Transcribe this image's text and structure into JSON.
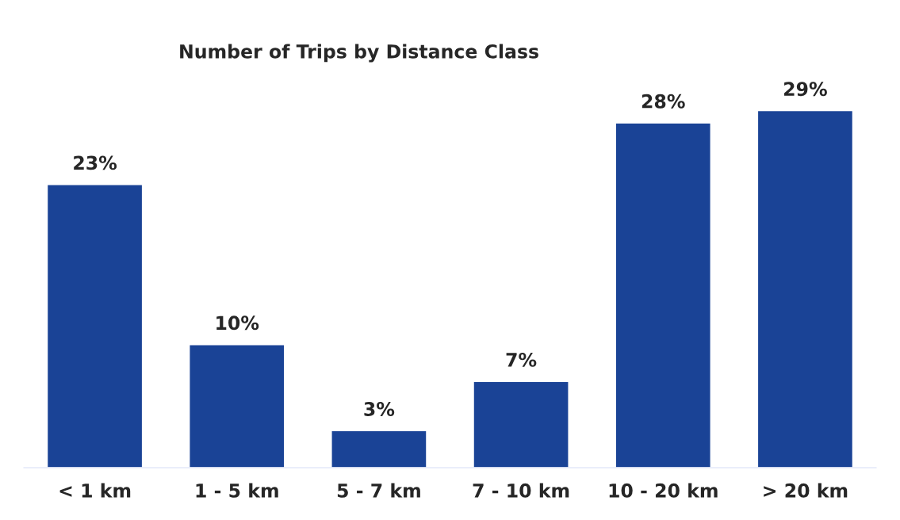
{
  "chart_data": {
    "type": "bar",
    "title": "Number of Trips by Distance Class",
    "categories": [
      "< 1 km",
      "1 - 5 km",
      "5 - 7 km",
      "7 - 10 km",
      "10 - 20 km",
      "> 20 km"
    ],
    "values": [
      23,
      10,
      3,
      7,
      28,
      29
    ],
    "value_labels": [
      "23%",
      "10%",
      "3%",
      "7%",
      "28%",
      "29%"
    ],
    "color": "#1a4396",
    "tick_labels": "x",
    "grid": false,
    "legend": false
  }
}
